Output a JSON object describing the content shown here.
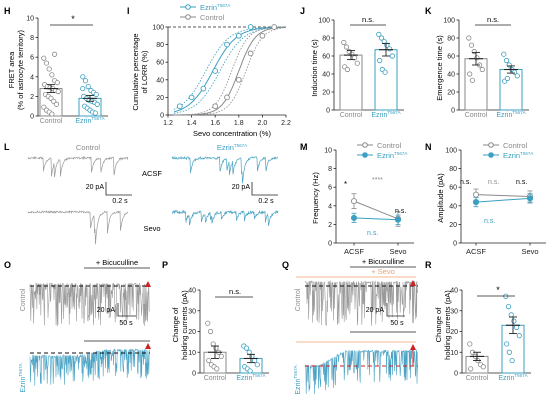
{
  "colors": {
    "control": "#8a8a8a",
    "ezrin": "#3a9fc0",
    "trace_control": "#9a9a9a",
    "trace_ezrin": "#4aa3c4",
    "red": "#d02020",
    "sevo": "#f0a070"
  },
  "panels": {
    "H": {
      "letter": "H",
      "ylabel_1": "FRET area",
      "ylabel_2": "(% of astrocyte territory)",
      "yticks": [
        "0",
        "2",
        "4",
        "6",
        "8",
        "10"
      ],
      "sig": "*",
      "groups": [
        "Control",
        "Ezrin"
      ],
      "sup": "T567A",
      "chart_data": {
        "type": "bar",
        "categories": [
          "Control",
          "EzrinT567A"
        ],
        "values": [
          2.8,
          1.8
        ],
        "errors": [
          0.4,
          0.3
        ],
        "ylim": [
          0,
          10
        ],
        "points": [
          [
            5.9,
            5.4,
            4.8,
            4.2,
            3.6,
            3.4,
            3.2,
            3.0,
            2.9,
            2.8,
            2.6,
            2.5,
            2.2,
            2.0,
            1.8,
            1.5,
            1.2,
            0.9,
            0.6,
            0.4,
            0.2,
            6.3
          ],
          [
            4.0,
            3.6,
            3.0,
            2.6,
            2.4,
            2.2,
            2.0,
            1.8,
            1.6,
            1.5,
            1.4,
            1.2,
            1.0,
            0.8,
            0.6,
            0.4,
            0.3,
            2.8
          ]
        ]
      }
    },
    "I": {
      "letter": "I",
      "legend": [
        "Ezrin",
        "Control"
      ],
      "sup": "T567A",
      "ylabel_1": "Cumulative percentage",
      "ylabel_2": "of LORR (%)",
      "xlabel": "Sevo concentration (%)",
      "yticks": [
        "0",
        "20",
        "40",
        "60",
        "80",
        "100"
      ],
      "xticks": [
        "1.2",
        "1.4",
        "1.6",
        "1.8",
        "2.0",
        "2.2"
      ],
      "chart_data": {
        "type": "line",
        "xlim": [
          1.2,
          2.2
        ],
        "ylim": [
          0,
          100
        ],
        "series": [
          {
            "name": "EzrinT567A",
            "x": [
              1.3,
              1.4,
              1.5,
              1.6,
              1.7,
              1.8,
              1.9
            ],
            "y": [
              10,
              20,
              30,
              50,
              80,
              90,
              100
            ]
          },
          {
            "name": "Control",
            "x": [
              1.6,
              1.7,
              1.8,
              1.9,
              2.0,
              2.1
            ],
            "y": [
              10,
              20,
              40,
              70,
              90,
              100
            ]
          }
        ]
      }
    },
    "J": {
      "letter": "J",
      "ylabel": "Induction time (s)",
      "yticks": [
        "0",
        "20",
        "40",
        "60",
        "80",
        "100"
      ],
      "sig": "n.s.",
      "groups": [
        "Control",
        "Ezrin"
      ],
      "sup": "T567A",
      "chart_data": {
        "type": "bar",
        "categories": [
          "Control",
          "EzrinT567A"
        ],
        "values": [
          61,
          67
        ],
        "errors": [
          5,
          7
        ],
        "ylim": [
          0,
          100
        ],
        "points": [
          [
            75,
            70,
            65,
            62,
            58,
            52,
            48,
            45
          ],
          [
            84,
            80,
            76,
            72,
            68,
            60,
            55,
            45,
            42
          ]
        ]
      }
    },
    "K": {
      "letter": "K",
      "ylabel": "Emergence time (s)",
      "yticks": [
        "0",
        "20",
        "40",
        "60",
        "80",
        "100"
      ],
      "sig": "n.s.",
      "groups": [
        "Control",
        "Ezrin"
      ],
      "sup": "T567A",
      "chart_data": {
        "type": "bar",
        "categories": [
          "Control",
          "EzrinT567A"
        ],
        "values": [
          57,
          45
        ],
        "errors": [
          7,
          4
        ],
        "ylim": [
          0,
          100
        ],
        "points": [
          [
            80,
            72,
            65,
            58,
            50,
            45,
            40,
            33
          ],
          [
            62,
            55,
            50,
            45,
            42,
            38,
            32,
            35
          ]
        ]
      }
    },
    "L": {
      "letter": "L",
      "title_control": "Control",
      "title_ezrin": "Ezrin",
      "sup": "T567A",
      "row1": "ACSF",
      "row2": "Sevo",
      "scale_pa": "20 pA",
      "scale_s": "0.2 s"
    },
    "M": {
      "letter": "M",
      "ylabel": "Frequency (Hz)",
      "yticks": [
        "0",
        "2",
        "4",
        "6",
        "8",
        "10"
      ],
      "xticks": [
        "ACSF",
        "Sevo"
      ],
      "legend": [
        "Control",
        "Ezrin"
      ],
      "sup": "T567A",
      "sig_star": "*",
      "sig_stars": "****",
      "sig_ns1": "n.s.",
      "sig_ns2": "n.s.",
      "chart_data": {
        "type": "line",
        "categories": [
          "ACSF",
          "Sevo"
        ],
        "ylim": [
          0,
          10
        ],
        "series": [
          {
            "name": "Control",
            "values": [
              4.5,
              2.6
            ]
          },
          {
            "name": "EzrinT567A",
            "values": [
              2.7,
              2.5
            ]
          }
        ]
      }
    },
    "N": {
      "letter": "N",
      "ylabel": "Amplitude (pA)",
      "yticks": [
        "0",
        "20",
        "40",
        "60",
        "80",
        "100"
      ],
      "xticks": [
        "ACSF",
        "Sevo"
      ],
      "legend": [
        "Control",
        "Ezrin"
      ],
      "sup": "T567A",
      "sig_a": "n.s.",
      "sig_b": "n.s.",
      "sig_c": "n.s.",
      "sig_d": "n.s.",
      "chart_data": {
        "type": "line",
        "categories": [
          "ACSF",
          "Sevo"
        ],
        "ylim": [
          0,
          100
        ],
        "series": [
          {
            "name": "Control",
            "values": [
              52,
              50
            ]
          },
          {
            "name": "EzrinT567A",
            "values": [
              44,
              48
            ]
          }
        ]
      }
    },
    "O": {
      "letter": "O",
      "drug": "+ Bicuculline",
      "side_control": "Control",
      "side_ezrin": "Ezrin",
      "sup": "T567A",
      "scale_pa": "20 pA",
      "scale_s": "50 s"
    },
    "P": {
      "letter": "P",
      "ylabel_1": "Change of",
      "ylabel_2": "holding currents (pA)",
      "yticks": [
        "0",
        "10",
        "20",
        "30",
        "40"
      ],
      "sig": "n.s.",
      "groups": [
        "Control",
        "Ezrin"
      ],
      "sup": "T567A",
      "chart_data": {
        "type": "bar",
        "categories": [
          "Control",
          "EzrinT567A"
        ],
        "values": [
          10,
          7
        ],
        "errors": [
          3,
          2
        ],
        "ylim": [
          0,
          40
        ],
        "points": [
          [
            24,
            20,
            14,
            12,
            10,
            8,
            6,
            4,
            3,
            2
          ],
          [
            13,
            12,
            10,
            8,
            6,
            4,
            3,
            2,
            1
          ]
        ]
      }
    },
    "Q": {
      "letter": "Q",
      "drug": "+ Bicuculline",
      "sevo": "+ Sevo",
      "side_control": "Control",
      "side_ezrin": "Ezrin",
      "sup": "T567A",
      "scale_pa": "20 pA",
      "scale_s": "50 s"
    },
    "R": {
      "letter": "R",
      "ylabel_1": "Change of",
      "ylabel_2": "holding currents (pA)",
      "yticks": [
        "0",
        "10",
        "20",
        "30",
        "40"
      ],
      "sig": "*",
      "groups": [
        "Control",
        "Ezrin"
      ],
      "sup": "T567A",
      "chart_data": {
        "type": "bar",
        "categories": [
          "Control",
          "EzrinT567A"
        ],
        "values": [
          8,
          23
        ],
        "errors": [
          2,
          4
        ],
        "ylim": [
          0,
          40
        ],
        "points": [
          [
            14,
            10,
            8,
            6,
            4,
            3,
            2
          ],
          [
            37,
            32,
            28,
            25,
            22,
            18,
            14,
            10,
            6
          ]
        ]
      }
    }
  }
}
